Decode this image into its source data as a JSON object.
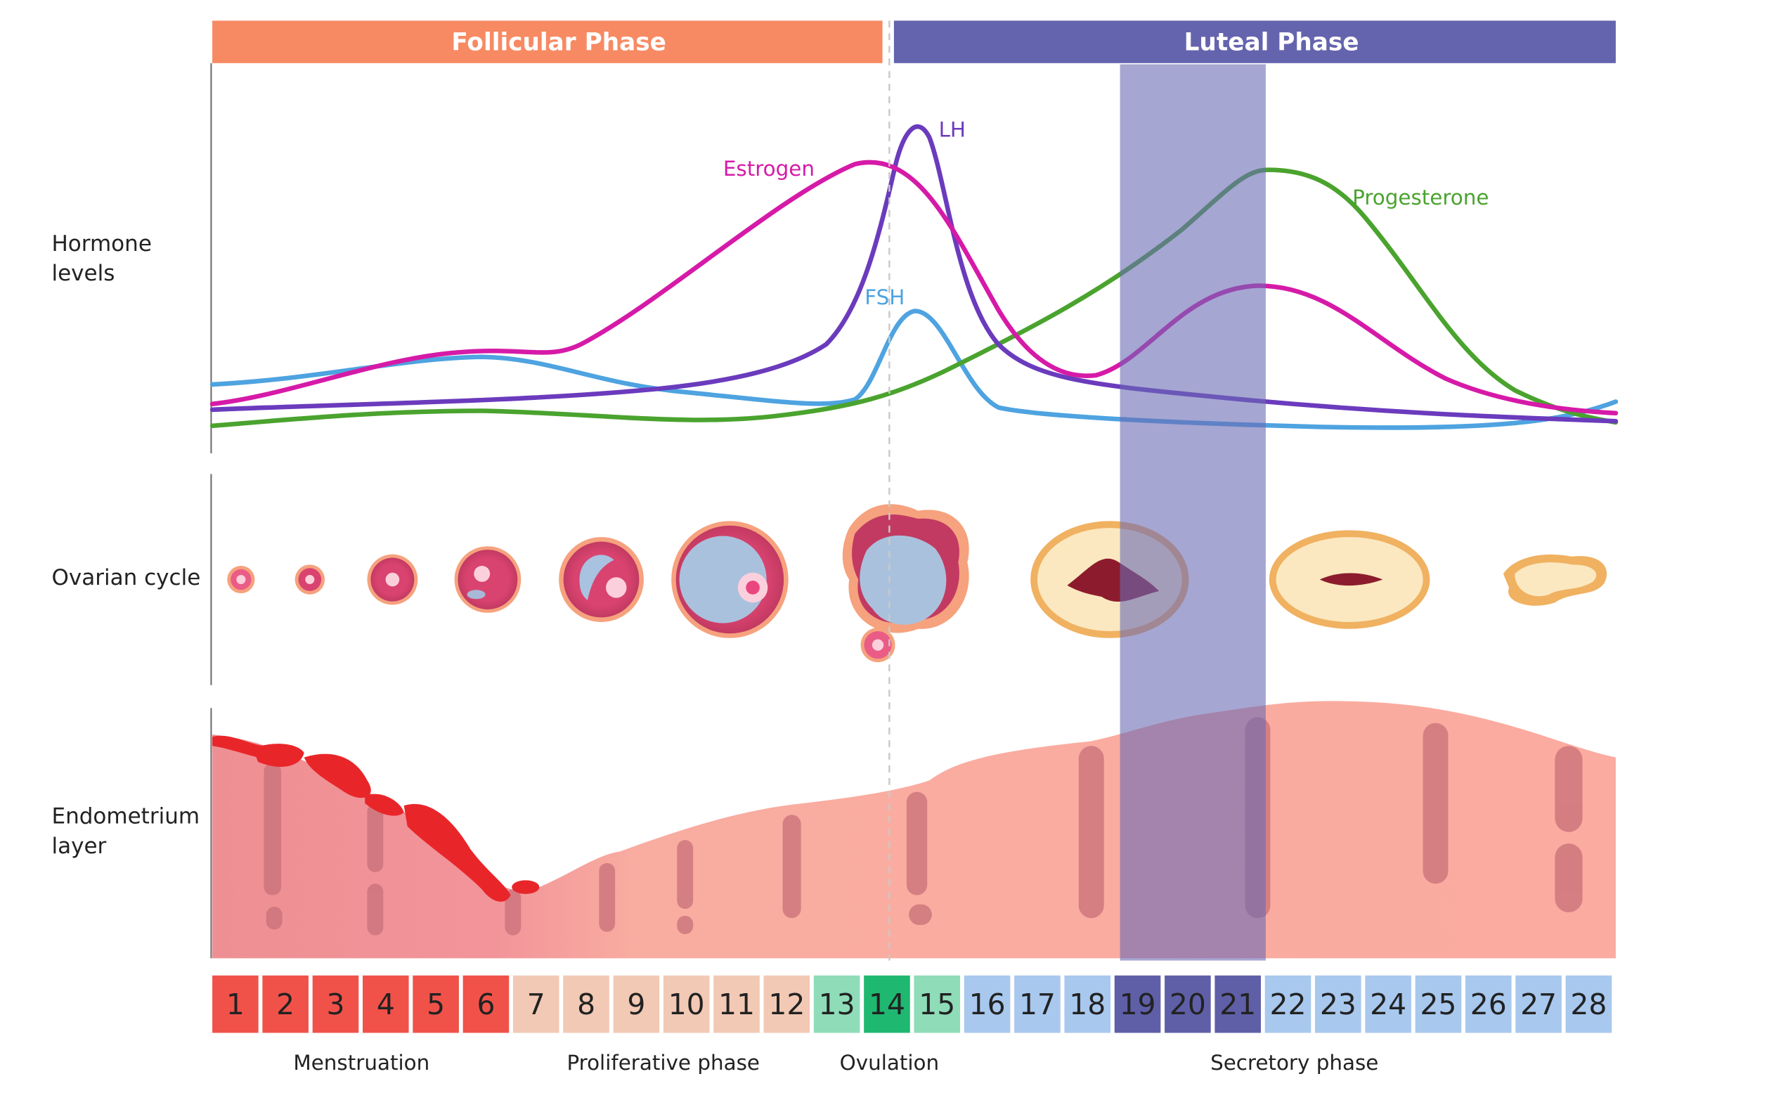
{
  "phases": {
    "follicular": "Follicular Phase",
    "luteal": "Luteal Phase"
  },
  "rows": {
    "hormones": [
      "Hormone",
      "levels"
    ],
    "ovarian": "Ovarian cycle",
    "endometrium": [
      "Endometrium",
      "layer"
    ]
  },
  "hormones": {
    "lh": "LH",
    "estrogen": "Estrogen",
    "fsh": "FSH",
    "progesterone": "Progesterone"
  },
  "days": [
    1,
    2,
    3,
    4,
    5,
    6,
    7,
    8,
    9,
    10,
    11,
    12,
    13,
    14,
    15,
    16,
    17,
    18,
    19,
    20,
    21,
    22,
    23,
    24,
    25,
    26,
    27,
    28
  ],
  "stages": {
    "menstruation": "Menstruation",
    "proliferative": "Proliferative phase",
    "ovulation": "Ovulation",
    "secretory": "Secretory phase"
  }
}
